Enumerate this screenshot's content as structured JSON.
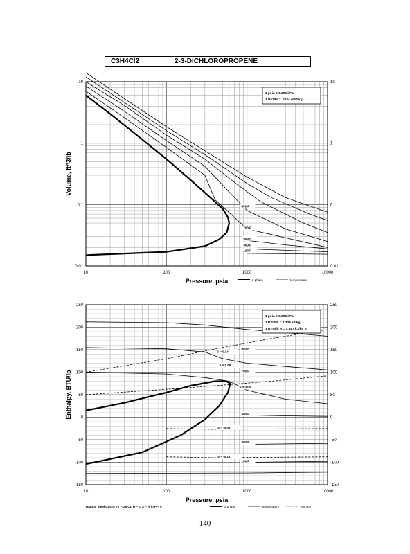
{
  "header": {
    "formula": "C3H4Cl2",
    "compound": "2-3-DICHLOROPROPENE"
  },
  "page_number": "140",
  "chart_data": [
    {
      "type": "line",
      "xscale": "log",
      "yscale": "log",
      "xlim": [
        10,
        10000
      ],
      "ylim": [
        0.01,
        10
      ],
      "xlabel": "Pressure,  psia",
      "ylabel": "Volume, ft^3/lb",
      "xticks": [
        {
          "v": 10,
          "label": "10"
        },
        {
          "v": 100,
          "label": "100"
        },
        {
          "v": 1000,
          "label": "1000"
        },
        {
          "v": 10000,
          "label": "10000"
        }
      ],
      "yticks": [
        {
          "v": 0.01,
          "label": "0.01"
        },
        {
          "v": 0.1,
          "label": "0.1"
        },
        {
          "v": 1,
          "label": "1"
        },
        {
          "v": 10,
          "label": "10"
        }
      ],
      "conversion_box": [
        "1 psia = 6.895 kPa",
        "1 ft^3/lb = .0624 m^3/kg"
      ],
      "legend": [
        {
          "label": "2 phase",
          "style": "thick"
        },
        {
          "label": "temperature",
          "style": "thin"
        }
      ],
      "series": [
        {
          "style": "thick",
          "points": [
            [
              10,
              6.0
            ],
            [
              20,
              3.0
            ],
            [
              50,
              1.15
            ],
            [
              100,
              0.55
            ],
            [
              200,
              0.25
            ],
            [
              350,
              0.13
            ],
            [
              500,
              0.085
            ],
            [
              580,
              0.062
            ],
            [
              600,
              0.05
            ],
            [
              560,
              0.035
            ],
            [
              450,
              0.027
            ],
            [
              300,
              0.021
            ],
            [
              100,
              0.017
            ],
            [
              10,
              0.015
            ]
          ]
        },
        {
          "style": "thin",
          "points": [
            [
              10,
              7.0
            ],
            [
              30,
              2.6
            ],
            [
              100,
              0.85
            ],
            [
              300,
              0.3
            ],
            [
              400,
              0.12
            ],
            [
              1000,
              0.04
            ],
            [
              10000,
              0.02
            ]
          ]
        },
        {
          "style": "thin",
          "points": [
            [
              10,
              8.5
            ],
            [
              30,
              3.3
            ],
            [
              100,
              1.1
            ],
            [
              300,
              0.42
            ],
            [
              600,
              0.16
            ],
            [
              1000,
              0.08
            ],
            [
              3000,
              0.04
            ],
            [
              10000,
              0.025
            ]
          ]
        },
        {
          "style": "thin",
          "points": [
            [
              10,
              10
            ],
            [
              30,
              4.1
            ],
            [
              100,
              1.35
            ],
            [
              300,
              0.55
            ],
            [
              800,
              0.2
            ],
            [
              1500,
              0.11
            ],
            [
              5000,
              0.05
            ],
            [
              10000,
              0.035
            ]
          ]
        },
        {
          "style": "thin",
          "points": [
            [
              10,
              12
            ],
            [
              30,
              4.6
            ],
            [
              100,
              1.6
            ],
            [
              300,
              0.65
            ],
            [
              1000,
              0.22
            ],
            [
              2000,
              0.13
            ],
            [
              6000,
              0.07
            ],
            [
              10000,
              0.055
            ]
          ]
        },
        {
          "style": "thin",
          "points": [
            [
              10,
              14
            ],
            [
              30,
              5.3
            ],
            [
              100,
              1.85
            ],
            [
              300,
              0.75
            ],
            [
              1000,
              0.28
            ],
            [
              3000,
              0.13
            ],
            [
              10000,
              0.075
            ]
          ]
        },
        {
          "style": "thin",
          "points": [
            [
              1000,
              0.026
            ],
            [
              3000,
              0.022
            ],
            [
              10000,
              0.019
            ]
          ]
        },
        {
          "style": "thin",
          "points": [
            [
              1000,
              0.019
            ],
            [
              3000,
              0.018
            ],
            [
              10000,
              0.017
            ]
          ]
        },
        {
          "style": "thin",
          "points": [
            [
              1000,
              0.016
            ],
            [
              3000,
              0.0158
            ],
            [
              10000,
              0.0155
            ]
          ]
        }
      ],
      "annotations": [
        {
          "text": "500 F",
          "x": 850,
          "y": 0.09
        },
        {
          "text": "700 F",
          "x": 900,
          "y": 0.04
        },
        {
          "text": "500 F",
          "x": 900,
          "y": 0.027
        },
        {
          "text": "300 F",
          "x": 900,
          "y": 0.021
        },
        {
          "text": "100 F",
          "x": 900,
          "y": 0.017
        }
      ]
    },
    {
      "type": "line",
      "xscale": "log",
      "yscale": "linear",
      "xlim": [
        10,
        10000
      ],
      "ylim": [
        -150,
        250
      ],
      "xlabel": "Pressure,  psia",
      "ylabel": "Enthalpy, BTU/lb",
      "xticks": [
        {
          "v": 10,
          "label": "10"
        },
        {
          "v": 100,
          "label": "100"
        },
        {
          "v": 1000,
          "label": "1000"
        },
        {
          "v": 10000,
          "label": "10000"
        }
      ],
      "yticks": [
        {
          "v": -150,
          "label": "-150"
        },
        {
          "v": -100,
          "label": "-100"
        },
        {
          "v": -50,
          "label": "-50"
        },
        {
          "v": 0,
          "label": "0"
        },
        {
          "v": 50,
          "label": "50"
        },
        {
          "v": 100,
          "label": "100"
        },
        {
          "v": 150,
          "label": "150"
        },
        {
          "v": 200,
          "label": "200"
        },
        {
          "v": 250,
          "label": "250"
        }
      ],
      "conversion_box": [
        "1 psia = 6.895 kPa",
        "1 BTU/lb = 2.326 kJ/kg",
        "1 BTU/lb R = 4.187 kJ/kg K"
      ],
      "footnote": "Datum: Ideal Gas @ 77 F(25 C),  H = 0,  S = R ln P = 0",
      "legend": [
        {
          "label": "2 phase",
          "style": "thick"
        },
        {
          "label": "temperature",
          "style": "thin"
        },
        {
          "label": "entropy",
          "style": "dashed"
        }
      ],
      "series": [
        {
          "style": "thick",
          "points": [
            [
              10,
              15
            ],
            [
              30,
              32
            ],
            [
              100,
              55
            ],
            [
              200,
              70
            ],
            [
              400,
              80
            ],
            [
              550,
              80
            ],
            [
              620,
              75
            ],
            [
              580,
              55
            ],
            [
              450,
              25
            ],
            [
              300,
              -5
            ],
            [
              150,
              -40
            ],
            [
              50,
              -78
            ],
            [
              10,
              -104
            ]
          ]
        },
        {
          "style": "thin",
          "points": [
            [
              10,
              212
            ],
            [
              100,
              210
            ],
            [
              300,
              205
            ],
            [
              1000,
              195
            ],
            [
              10000,
              180
            ]
          ]
        },
        {
          "style": "thin",
          "points": [
            [
              10,
              155
            ],
            [
              100,
              152
            ],
            [
              300,
              145
            ],
            [
              500,
              130
            ],
            [
              1000,
              120
            ],
            [
              10000,
              105
            ]
          ]
        },
        {
          "style": "thin",
          "points": [
            [
              10,
              100
            ],
            [
              100,
              96
            ],
            [
              300,
              88
            ],
            [
              600,
              80
            ],
            [
              1000,
              60
            ],
            [
              3000,
              40
            ],
            [
              10000,
              30
            ]
          ]
        },
        {
          "style": "thin",
          "points": [
            [
              1000,
              5
            ],
            [
              3000,
              3
            ],
            [
              10000,
              2
            ]
          ]
        },
        {
          "style": "thin",
          "points": [
            [
              1000,
              -60
            ],
            [
              3000,
              -59
            ],
            [
              10000,
              -58
            ]
          ]
        },
        {
          "style": "thin",
          "points": [
            [
              1000,
              -100
            ],
            [
              3000,
              -99
            ],
            [
              10000,
              -98
            ]
          ]
        },
        {
          "style": "thin",
          "points": [
            [
              10,
              -125
            ],
            [
              1000,
              -124
            ],
            [
              10000,
              -122
            ]
          ]
        },
        {
          "style": "dashed",
          "points": [
            [
              10,
              100
            ],
            [
              100,
              130
            ],
            [
              500,
              155
            ],
            [
              2000,
              175
            ],
            [
              10000,
              195
            ]
          ]
        },
        {
          "style": "dashed",
          "points": [
            [
              10,
              50
            ],
            [
              100,
              62
            ],
            [
              400,
              70
            ],
            [
              2000,
              80
            ],
            [
              10000,
              92
            ]
          ]
        },
        {
          "style": "dashed",
          "points": [
            [
              100,
              -25
            ],
            [
              400,
              -27
            ],
            [
              2000,
              -26
            ],
            [
              10000,
              -25
            ]
          ]
        },
        {
          "style": "dashed",
          "points": [
            [
              100,
              -88
            ],
            [
              400,
              -90
            ],
            [
              2000,
              -89
            ],
            [
              10000,
              -88
            ]
          ]
        }
      ],
      "annotations": [
        {
          "text": "S = 0.14",
          "x": 420,
          "y": 143
        },
        {
          "text": "S = 0.09",
          "x": 450,
          "y": 113
        },
        {
          "text": "S = 0.05",
          "x": 800,
          "y": 65
        },
        {
          "text": "S = -0.05",
          "x": 430,
          "y": -25
        },
        {
          "text": "S = -0.15",
          "x": 430,
          "y": -90
        },
        {
          "text": "600 F",
          "x": 850,
          "y": 150
        },
        {
          "text": "700 F",
          "x": 850,
          "y": 100
        },
        {
          "text": "500 F",
          "x": 850,
          "y": 5
        },
        {
          "text": "300 F",
          "x": 850,
          "y": -58
        },
        {
          "text": "150 F",
          "x": 850,
          "y": -100
        }
      ]
    }
  ]
}
